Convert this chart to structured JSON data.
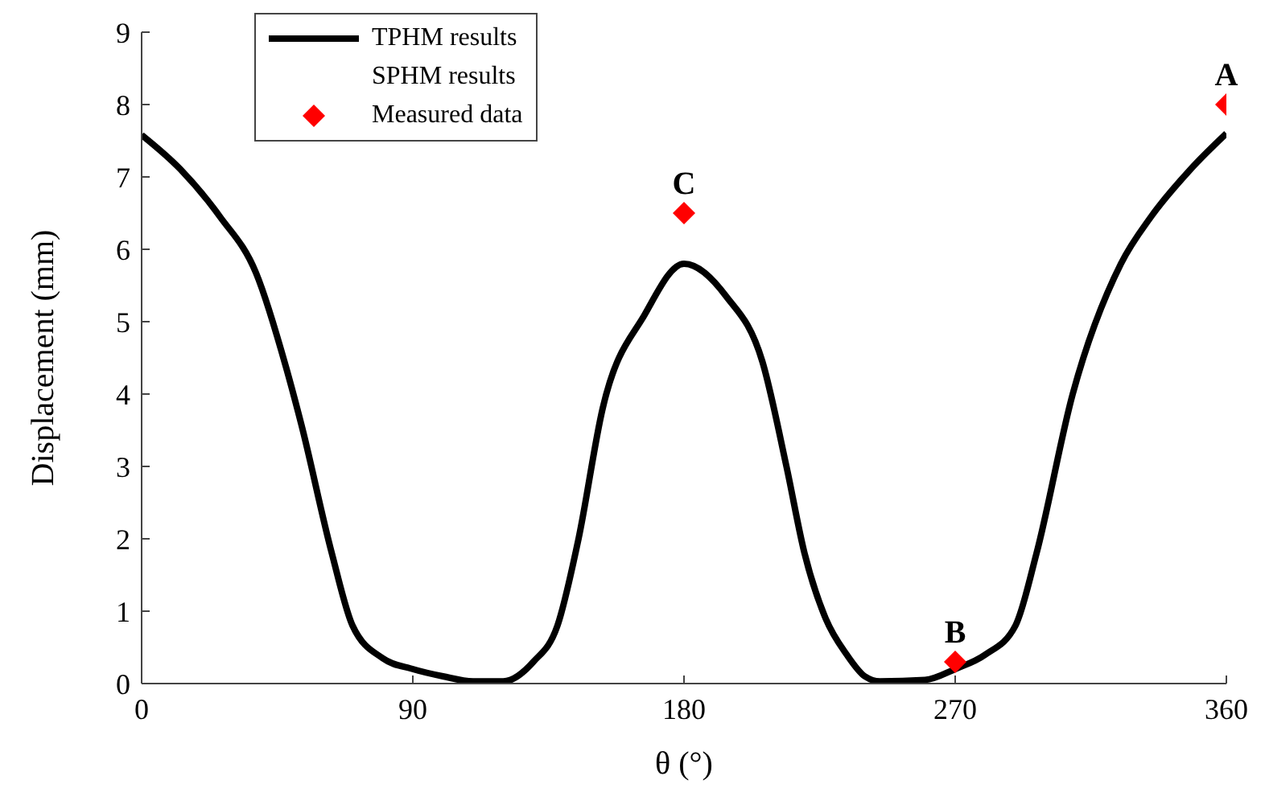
{
  "chart_data": {
    "type": "line",
    "xlabel": "θ (°)",
    "ylabel": "Displacement (mm)",
    "xlim": [
      0,
      360
    ],
    "xticks": [
      0,
      90,
      180,
      270,
      360
    ],
    "ylim": [
      0,
      9
    ],
    "yticks": [
      0,
      1,
      2,
      3,
      4,
      5,
      6,
      7,
      8,
      9
    ],
    "grid": false,
    "legend": "top left",
    "series": [
      {
        "name": "TPHM results",
        "color": "#000000",
        "marker": "none",
        "line_style": "solid",
        "x": [
          0,
          13,
          26,
          38,
          48,
          53,
          63,
          70,
          80,
          90,
          100,
          110,
          120,
          130,
          138,
          145,
          153,
          167,
          180,
          194,
          206,
          214,
          220,
          227,
          234,
          240,
          245,
          260,
          270,
          280,
          290,
          297,
          309,
          325,
          335,
          348,
          360
        ],
        "values": [
          7.58,
          7.1,
          6.45,
          5.67,
          4.36,
          3.58,
          1.82,
          0.8,
          0.35,
          0.2,
          0.1,
          0.03,
          0.03,
          0.3,
          0.8,
          2.0,
          3.8,
          5.1,
          5.8,
          5.35,
          4.45,
          3.0,
          1.8,
          0.9,
          0.4,
          0.1,
          0.03,
          0.05,
          0.2,
          0.4,
          0.8,
          1.8,
          4.0,
          5.8,
          6.45,
          7.1,
          7.6
        ]
      },
      {
        "name": "SPHM results"
      },
      {
        "name": "Measured data",
        "type": "scatter",
        "color": "#ff0000",
        "marker": "diamond",
        "x": [
          180,
          270,
          360
        ],
        "values": [
          6.5,
          0.3,
          8.0
        ]
      }
    ],
    "annotations": [
      {
        "text": "C",
        "x": 180,
        "y": 6.5
      },
      {
        "text": "B",
        "x": 270,
        "y": 0.3
      },
      {
        "text": "A",
        "x": 360,
        "y": 8.0
      }
    ]
  }
}
